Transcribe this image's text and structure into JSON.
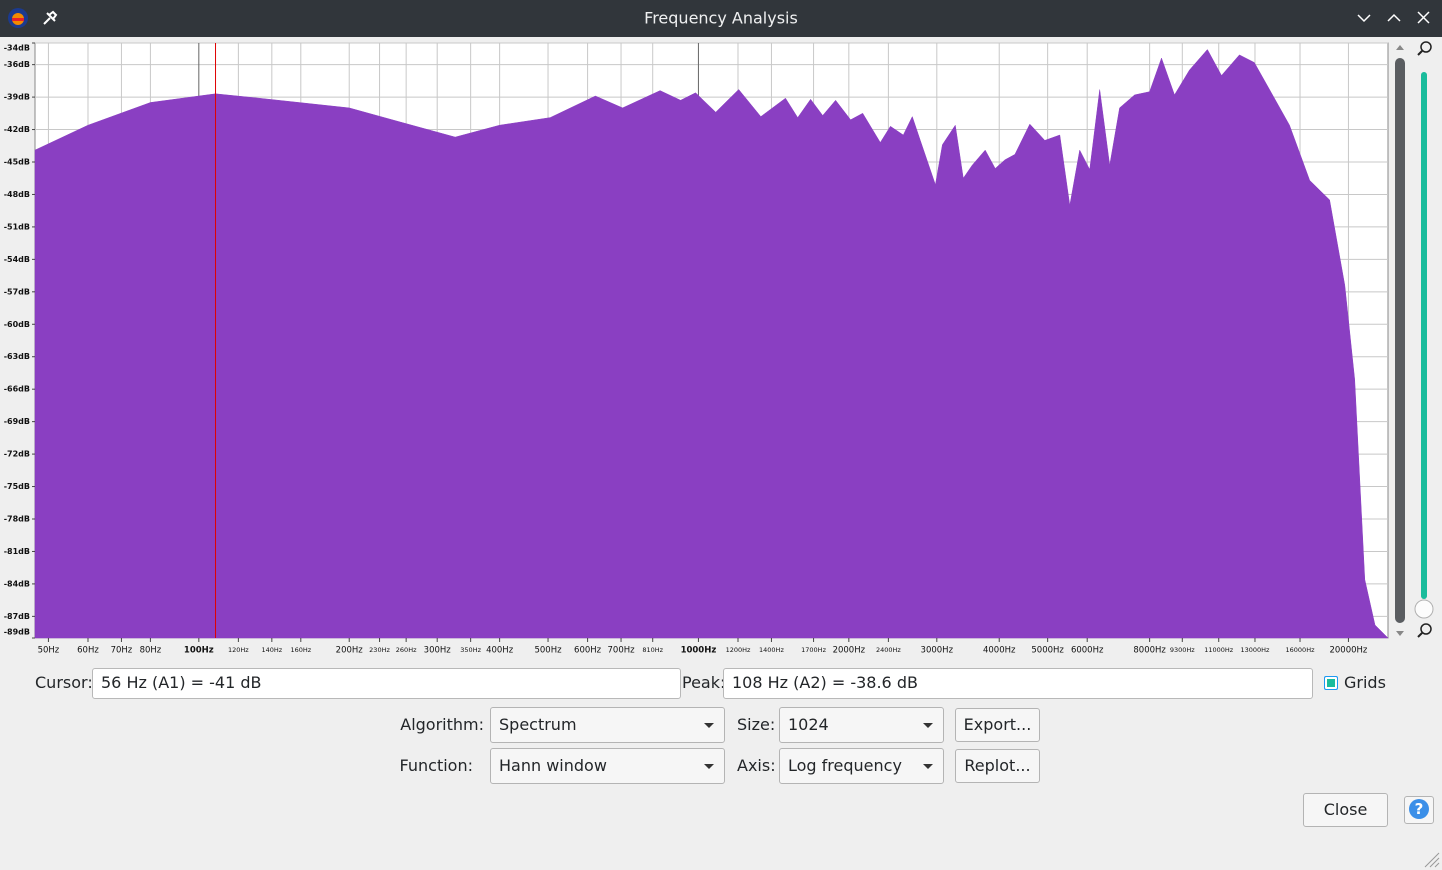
{
  "ui": {
    "window_title": "Frequency Analysis",
    "cursor_label": "Cursor:",
    "cursor_value": "56 Hz (A1) = -41 dB",
    "peak_label": "Peak:",
    "peak_value": "108 Hz (A2) = -38.6 dB",
    "grids_label": "Grids",
    "grids_checked": true,
    "algorithm_label": "Algorithm:",
    "algorithm": "Spectrum",
    "size_label": "Size:",
    "size": "1024",
    "export_button": "Export...",
    "function_label": "Function:",
    "function": "Hann window",
    "axis_label": "Axis:",
    "axis": "Log frequency",
    "replot_button": "Replot...",
    "close_button": "Close",
    "help_button": "?"
  },
  "chart_data": {
    "type": "area",
    "color": "#8a3fc2",
    "log_x": true,
    "grid": true,
    "peak_line_x": 108,
    "peak_line_color": "#e00000",
    "xlim": [
      47,
      24000
    ],
    "ylim": [
      -89,
      -34
    ],
    "x": [
      47,
      60,
      80,
      100,
      108,
      132,
      200,
      253,
      326,
      400,
      505,
      622,
      705,
      838,
      921,
      987,
      1083,
      1204,
      1333,
      1494,
      1580,
      1677,
      1773,
      1882,
      2016,
      2132,
      2312,
      2422,
      2571,
      2680,
      2780,
      2981,
      3078,
      3267,
      3389,
      3532,
      3749,
      3926,
      4108,
      4299,
      4605,
      4935,
      5288,
      5537,
      5797,
      6069,
      6355,
      6654,
      6966,
      7464,
      7998,
      8450,
      8972,
      9613,
      10440,
      11140,
      12100,
      12960,
      13900,
      15240,
      16730,
      18340,
      19670,
      20590,
      21570,
      22600,
      24000
    ],
    "values": [
      -43.9,
      -41.6,
      -39.5,
      -38.9,
      -38.7,
      -39.1,
      -40.0,
      -41.3,
      -42.7,
      -41.6,
      -40.9,
      -38.9,
      -40.0,
      -38.4,
      -39.3,
      -38.6,
      -40.4,
      -38.3,
      -40.8,
      -39.1,
      -40.9,
      -39.2,
      -40.7,
      -39.3,
      -41.1,
      -40.5,
      -43.2,
      -41.7,
      -42.5,
      -40.8,
      -43.0,
      -47.1,
      -43.4,
      -41.6,
      -46.5,
      -45.3,
      -43.9,
      -45.6,
      -44.8,
      -44.3,
      -41.5,
      -43.0,
      -42.5,
      -49.0,
      -43.9,
      -45.7,
      -38.3,
      -45.3,
      -40.0,
      -38.8,
      -38.5,
      -35.4,
      -38.8,
      -36.5,
      -34.6,
      -37.0,
      -35.1,
      -35.8,
      -38.3,
      -41.6,
      -46.7,
      -48.5,
      -56.4,
      -65.1,
      -83.6,
      -87.8,
      -89.0
    ],
    "yticks": [
      {
        "value": -34,
        "label": "-34dB"
      },
      {
        "value": -36,
        "label": "-36dB"
      },
      {
        "value": -39,
        "label": "-39dB"
      },
      {
        "value": -42,
        "label": "-42dB"
      },
      {
        "value": -45,
        "label": "-45dB"
      },
      {
        "value": -48,
        "label": "-48dB"
      },
      {
        "value": -51,
        "label": "-51dB"
      },
      {
        "value": -54,
        "label": "-54dB"
      },
      {
        "value": -57,
        "label": "-57dB"
      },
      {
        "value": -60,
        "label": "-60dB"
      },
      {
        "value": -63,
        "label": "-63dB"
      },
      {
        "value": -66,
        "label": "-66dB"
      },
      {
        "value": -69,
        "label": "-69dB"
      },
      {
        "value": -72,
        "label": "-72dB"
      },
      {
        "value": -75,
        "label": "-75dB"
      },
      {
        "value": -78,
        "label": "-78dB"
      },
      {
        "value": -81,
        "label": "-81dB"
      },
      {
        "value": -84,
        "label": "-84dB"
      },
      {
        "value": -87,
        "label": "-87dB"
      },
      {
        "value": -89,
        "label": "-89dB"
      }
    ],
    "xticks": [
      {
        "value": 50,
        "label": "50Hz"
      },
      {
        "value": 60,
        "label": "60Hz"
      },
      {
        "value": 70,
        "label": "70Hz"
      },
      {
        "value": 80,
        "label": "80Hz"
      },
      {
        "value": 100,
        "label": "100Hz"
      },
      {
        "value": 120,
        "label": "120Hz"
      },
      {
        "value": 140,
        "label": "140Hz"
      },
      {
        "value": 160,
        "label": "160Hz"
      },
      {
        "value": 200,
        "label": "200Hz"
      },
      {
        "value": 230,
        "label": "230Hz"
      },
      {
        "value": 260,
        "label": "260Hz"
      },
      {
        "value": 300,
        "label": "300Hz"
      },
      {
        "value": 350,
        "label": "350Hz"
      },
      {
        "value": 400,
        "label": "400Hz"
      },
      {
        "value": 500,
        "label": "500Hz"
      },
      {
        "value": 600,
        "label": "600Hz"
      },
      {
        "value": 700,
        "label": "700Hz"
      },
      {
        "value": 810,
        "label": "810Hz"
      },
      {
        "value": 1000,
        "label": "1000Hz"
      },
      {
        "value": 1200,
        "label": "1200Hz"
      },
      {
        "value": 1400,
        "label": "1400Hz"
      },
      {
        "value": 1700,
        "label": "1700Hz"
      },
      {
        "value": 2000,
        "label": "2000Hz"
      },
      {
        "value": 2400,
        "label": "2400Hz"
      },
      {
        "value": 3000,
        "label": "3000Hz"
      },
      {
        "value": 4000,
        "label": "4000Hz"
      },
      {
        "value": 5000,
        "label": "5000Hz"
      },
      {
        "value": 6000,
        "label": "6000Hz"
      },
      {
        "value": 8000,
        "label": "8000Hz"
      },
      {
        "value": 9300,
        "label": "9300Hz"
      },
      {
        "value": 11000,
        "label": "11000Hz"
      },
      {
        "value": 13000,
        "label": "13000Hz"
      },
      {
        "value": 16000,
        "label": "16000Hz"
      },
      {
        "value": 20000,
        "label": "20000Hz"
      }
    ]
  }
}
